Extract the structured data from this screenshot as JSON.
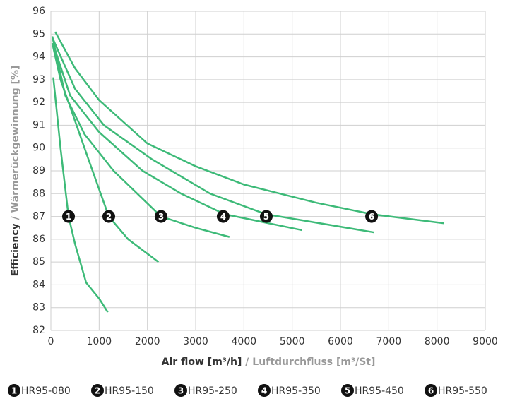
{
  "chart_data": {
    "type": "line",
    "y_label": [
      "Efficiency",
      "/ Wärmerückgewinnung [%]"
    ],
    "x_label": [
      "Air flow [m³/h]",
      "/ Luftdurchfluss [m³/St]"
    ],
    "xlim": [
      0,
      9000
    ],
    "xticks": [
      0,
      1000,
      2000,
      3000,
      4000,
      5000,
      6000,
      7000,
      8000,
      9000
    ],
    "ylim": [
      82,
      96
    ],
    "yticks": [
      82,
      83,
      84,
      85,
      86,
      87,
      88,
      89,
      90,
      91,
      92,
      93,
      94,
      95,
      96
    ],
    "grid": true,
    "series": [
      {
        "name": "HR95-080",
        "label": "1",
        "label_x": 366,
        "label_y": 87,
        "color": "#3dba78",
        "x": [
          50,
          200,
          366,
          500,
          730,
          1000,
          1180
        ],
        "values": [
          93.1,
          90,
          87,
          85.8,
          84.1,
          83.4,
          82.8
        ]
      },
      {
        "name": "HR95-150",
        "label": "2",
        "label_x": 1200,
        "label_y": 87,
        "color": "#3dba78",
        "x": [
          30,
          200,
          400,
          780,
          1200,
          1600,
          2230
        ],
        "values": [
          94.6,
          93,
          91.8,
          89.5,
          87,
          86,
          85
        ]
      },
      {
        "name": "HR95-250",
        "label": "3",
        "label_x": 2283,
        "label_y": 87,
        "color": "#3dba78",
        "x": [
          30,
          300,
          700,
          1300,
          2280,
          3000,
          3700
        ],
        "values": [
          94.9,
          92.3,
          90.6,
          89,
          87,
          86.5,
          86.1
        ]
      },
      {
        "name": "HR95-350",
        "label": "4",
        "label_x": 3570,
        "label_y": 87,
        "color": "#3dba78",
        "x": [
          40,
          400,
          1000,
          1900,
          2700,
          3600,
          5200
        ],
        "values": [
          94.6,
          92.3,
          90.7,
          89,
          88,
          87.1,
          86.4
        ]
      },
      {
        "name": "HR95-450",
        "label": "5",
        "label_x": 4463,
        "label_y": 87,
        "color": "#3dba78",
        "x": [
          40,
          500,
          1100,
          2100,
          3300,
          4450,
          6700
        ],
        "values": [
          94.8,
          92.6,
          91,
          89.5,
          88,
          87.1,
          86.3
        ]
      },
      {
        "name": "HR95-550",
        "label": "6",
        "label_x": 6645,
        "label_y": 87,
        "color": "#3dba78",
        "x": [
          90,
          500,
          1000,
          2000,
          3000,
          4000,
          5500,
          6650,
          8150
        ],
        "values": [
          95.1,
          93.5,
          92.1,
          90.2,
          89.2,
          88.4,
          87.6,
          87.1,
          86.7
        ]
      }
    ]
  }
}
